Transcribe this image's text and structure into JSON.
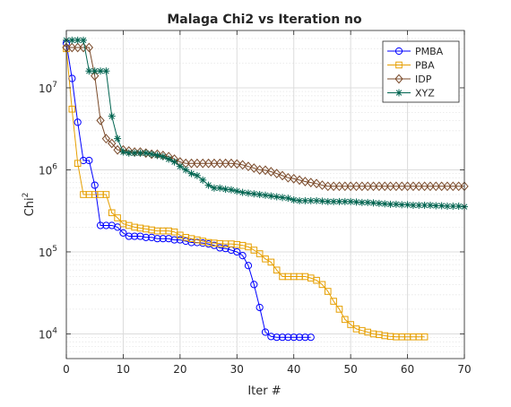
{
  "chart_data": {
    "type": "line",
    "title": "Malaga Chi2 vs Iteration no",
    "xlabel": "Iter #",
    "ylabel_base": "Chi",
    "ylabel_sup": "2",
    "xlim": [
      0,
      70
    ],
    "ylim": [
      5000,
      50000000
    ],
    "yscale": "log",
    "grid": true,
    "legend_position": "top-right",
    "x_ticks": [
      0,
      10,
      20,
      30,
      40,
      50,
      60,
      70
    ],
    "x_tick_labels": [
      "0",
      "10",
      "20",
      "30",
      "40",
      "50",
      "60",
      "70"
    ],
    "y_ticks": [
      10000,
      100000,
      1000000,
      10000000
    ],
    "y_tick_labels": [
      {
        "base": "10",
        "exp": "4"
      },
      {
        "base": "10",
        "exp": "5"
      },
      {
        "base": "10",
        "exp": "6"
      },
      {
        "base": "10",
        "exp": "7"
      }
    ],
    "series": [
      {
        "name": "PMBA",
        "color": "#0000ff",
        "marker": "circle",
        "x": [
          0,
          1,
          2,
          3,
          4,
          5,
          6,
          7,
          8,
          9,
          10,
          11,
          12,
          13,
          14,
          15,
          16,
          17,
          18,
          19,
          20,
          21,
          22,
          23,
          24,
          25,
          26,
          27,
          28,
          29,
          30,
          31,
          32,
          33,
          34,
          35,
          36,
          37,
          38,
          39,
          40,
          41,
          42,
          43
        ],
        "y": [
          35000000,
          13000000,
          3800000,
          1300000,
          1300000,
          650000,
          210000,
          210000,
          210000,
          200000,
          170000,
          155000,
          155000,
          155000,
          150000,
          150000,
          145000,
          145000,
          145000,
          140000,
          140000,
          135000,
          130000,
          130000,
          128000,
          125000,
          120000,
          112000,
          110000,
          105000,
          100000,
          90000,
          68000,
          40000,
          21000,
          10500,
          9300,
          9100,
          9100,
          9100,
          9100,
          9100,
          9100,
          9100
        ]
      },
      {
        "name": "PBA",
        "color": "#e69f00",
        "marker": "square",
        "x": [
          0,
          1,
          2,
          3,
          4,
          5,
          6,
          7,
          8,
          9,
          10,
          11,
          12,
          13,
          14,
          15,
          16,
          17,
          18,
          19,
          20,
          21,
          22,
          23,
          24,
          25,
          26,
          27,
          28,
          29,
          30,
          31,
          32,
          33,
          34,
          35,
          36,
          37,
          38,
          39,
          40,
          41,
          42,
          43,
          44,
          45,
          46,
          47,
          48,
          49,
          50,
          51,
          52,
          53,
          54,
          55,
          56,
          57,
          58,
          59,
          60,
          61,
          62,
          63
        ],
        "y": [
          30000000,
          5500000,
          1200000,
          500000,
          500000,
          500000,
          500000,
          500000,
          300000,
          260000,
          220000,
          210000,
          200000,
          195000,
          190000,
          185000,
          180000,
          180000,
          180000,
          175000,
          160000,
          150000,
          145000,
          140000,
          135000,
          130000,
          128000,
          126000,
          125000,
          125000,
          123000,
          120000,
          115000,
          105000,
          95000,
          82000,
          75000,
          60000,
          50000,
          50000,
          50000,
          50000,
          50000,
          48000,
          45000,
          40000,
          33000,
          25000,
          20000,
          15000,
          13000,
          11500,
          11000,
          10500,
          10000,
          9800,
          9500,
          9300,
          9200,
          9200,
          9200,
          9200,
          9200,
          9200
        ]
      },
      {
        "name": "IDP",
        "color": "#7a4a2a",
        "marker": "diamond",
        "x": [
          0,
          1,
          2,
          3,
          4,
          5,
          6,
          7,
          8,
          9,
          10,
          11,
          12,
          13,
          14,
          15,
          16,
          17,
          18,
          19,
          20,
          21,
          22,
          23,
          24,
          25,
          26,
          27,
          28,
          29,
          30,
          31,
          32,
          33,
          34,
          35,
          36,
          37,
          38,
          39,
          40,
          41,
          42,
          43,
          44,
          45,
          46,
          47,
          48,
          49,
          50,
          51,
          52,
          53,
          54,
          55,
          56,
          57,
          58,
          59,
          60,
          61,
          62,
          63,
          64,
          65,
          66,
          67,
          68,
          69,
          70
        ],
        "y": [
          31000000,
          31000000,
          31000000,
          31000000,
          31000000,
          14000000,
          4000000,
          2400000,
          2100000,
          1750000,
          1750000,
          1700000,
          1650000,
          1650000,
          1600000,
          1550000,
          1550000,
          1500000,
          1450000,
          1350000,
          1250000,
          1200000,
          1200000,
          1200000,
          1200000,
          1200000,
          1200000,
          1200000,
          1200000,
          1200000,
          1180000,
          1150000,
          1100000,
          1050000,
          1000000,
          990000,
          950000,
          900000,
          850000,
          800000,
          780000,
          750000,
          720000,
          700000,
          680000,
          650000,
          630000,
          630000,
          630000,
          630000,
          630000,
          630000,
          630000,
          630000,
          630000,
          630000,
          630000,
          630000,
          630000,
          630000,
          630000,
          630000,
          630000,
          630000,
          630000,
          630000,
          630000,
          630000,
          630000,
          630000,
          630000
        ]
      },
      {
        "name": "XYZ",
        "color": "#006450",
        "marker": "star",
        "x": [
          0,
          1,
          2,
          3,
          4,
          5,
          6,
          7,
          8,
          9,
          10,
          11,
          12,
          13,
          14,
          15,
          16,
          17,
          18,
          19,
          20,
          21,
          22,
          23,
          24,
          25,
          26,
          27,
          28,
          29,
          30,
          31,
          32,
          33,
          34,
          35,
          36,
          37,
          38,
          39,
          40,
          41,
          42,
          43,
          44,
          45,
          46,
          47,
          48,
          49,
          50,
          51,
          52,
          53,
          54,
          55,
          56,
          57,
          58,
          59,
          60,
          61,
          62,
          63,
          64,
          65,
          66,
          67,
          68,
          69,
          70
        ],
        "y": [
          38000000,
          38000000,
          38000000,
          38000000,
          16000000,
          16000000,
          16000000,
          16000000,
          4500000,
          2400000,
          1650000,
          1600000,
          1600000,
          1600000,
          1600000,
          1550000,
          1500000,
          1450000,
          1350000,
          1250000,
          1100000,
          1000000,
          900000,
          850000,
          750000,
          650000,
          600000,
          600000,
          580000,
          570000,
          550000,
          530000,
          520000,
          510000,
          500000,
          490000,
          480000,
          470000,
          460000,
          450000,
          430000,
          420000,
          420000,
          420000,
          420000,
          415000,
          410000,
          410000,
          410000,
          410000,
          410000,
          405000,
          400000,
          400000,
          395000,
          390000,
          385000,
          380000,
          380000,
          375000,
          375000,
          370000,
          370000,
          370000,
          370000,
          365000,
          365000,
          360000,
          360000,
          360000,
          355000
        ]
      }
    ]
  }
}
